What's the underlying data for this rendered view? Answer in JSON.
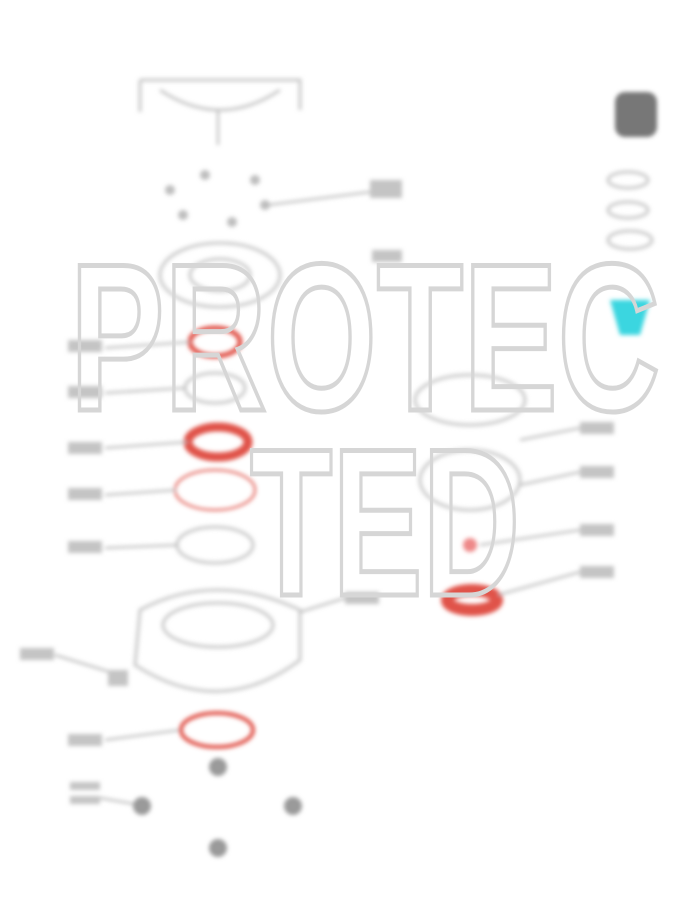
{
  "watermark": {
    "lines": [
      "PROTEC",
      "TED"
    ]
  }
}
